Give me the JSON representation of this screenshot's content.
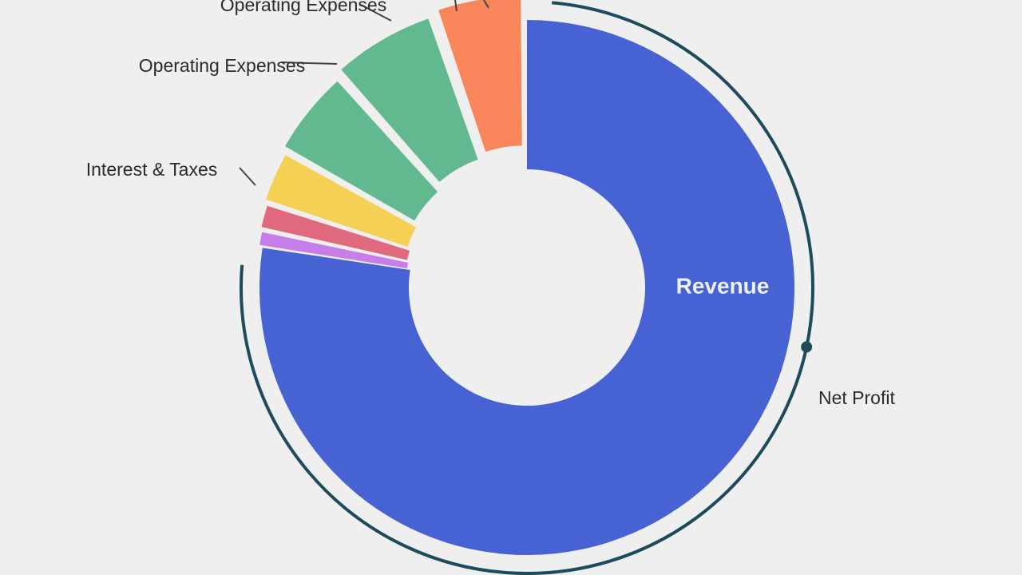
{
  "chart_data": {
    "type": "pie",
    "title": "",
    "variant": "exploded-donut",
    "colors": {
      "background": "#efefef",
      "ring": "#1d4b5c",
      "leader": "#444444"
    },
    "slices": [
      {
        "label": "Revenue",
        "value": 73.5,
        "color": "#4763d3"
      },
      {
        "label": "",
        "value": 1.0,
        "color": "#c77ee8"
      },
      {
        "label": "",
        "value": 1.5,
        "color": "#e0697e"
      },
      {
        "label": "",
        "value": 3.0,
        "color": "#f4d155"
      },
      {
        "label": "Operating Expenses",
        "value": 5.0,
        "color": "#63b98f"
      },
      {
        "label": "Operating Expenses",
        "value": 6.0,
        "color": "#63b98f"
      },
      {
        "label": "Interest & Taxes",
        "value": 5.0,
        "color": "#f9865a"
      }
    ],
    "annotations": [
      {
        "label": "Net Profit",
        "marker": "dot-on-ring"
      }
    ]
  }
}
